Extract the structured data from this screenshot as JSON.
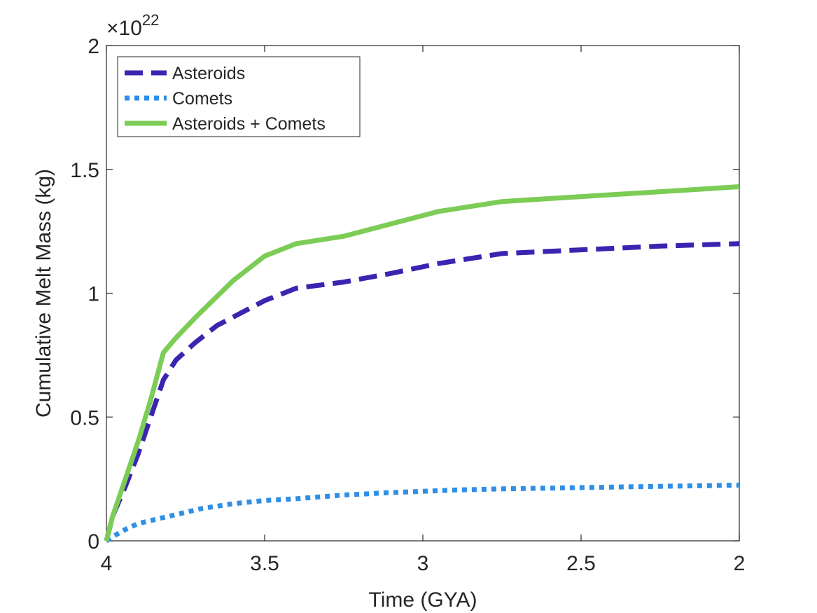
{
  "chart_data": {
    "type": "line",
    "title": "",
    "xlabel": "Time (GYA)",
    "ylabel": "Cumulative Melt Mass (kg)",
    "exponent_label": {
      "base": "×10",
      "power": "22"
    },
    "xlim": [
      4,
      2
    ],
    "ylim": [
      0,
      2
    ],
    "x_reversed": true,
    "x_ticks": [
      4,
      3.5,
      3,
      2.5,
      2
    ],
    "x_tick_labels": [
      "4",
      "3.5",
      "3",
      "2.5",
      "2"
    ],
    "y_ticks": [
      0,
      0.5,
      1,
      1.5,
      2
    ],
    "y_tick_labels": [
      "0",
      "0.5",
      "1",
      "1.5",
      "2"
    ],
    "grid": false,
    "legend_position": "top-left",
    "series": [
      {
        "name": "Asteroids",
        "color": "#3b24b0",
        "style": "dashed",
        "x": [
          4.0,
          3.98,
          3.94,
          3.9,
          3.86,
          3.82,
          3.78,
          3.72,
          3.65,
          3.5,
          3.4,
          3.25,
          3.1,
          2.95,
          2.75,
          2.5,
          2.25,
          2.0
        ],
        "y": [
          0.0,
          0.1,
          0.22,
          0.35,
          0.5,
          0.65,
          0.73,
          0.8,
          0.87,
          0.97,
          1.02,
          1.045,
          1.08,
          1.12,
          1.16,
          1.175,
          1.19,
          1.2
        ]
      },
      {
        "name": "Comets",
        "color": "#2f8fe6",
        "style": "dotted",
        "x": [
          4.0,
          3.95,
          3.9,
          3.8,
          3.7,
          3.6,
          3.5,
          3.4,
          3.25,
          3.1,
          2.9,
          2.75,
          2.5,
          2.25,
          2.0
        ],
        "y": [
          0.0,
          0.04,
          0.07,
          0.1,
          0.13,
          0.15,
          0.163,
          0.17,
          0.185,
          0.195,
          0.205,
          0.21,
          0.215,
          0.22,
          0.225
        ]
      },
      {
        "name": "Asteroids + Comets",
        "color": "#7ccc55",
        "style": "solid",
        "x": [
          4.0,
          3.98,
          3.94,
          3.9,
          3.86,
          3.82,
          3.78,
          3.72,
          3.6,
          3.5,
          3.4,
          3.25,
          3.1,
          2.95,
          2.75,
          2.5,
          2.25,
          2.0
        ],
        "y": [
          0.0,
          0.1,
          0.25,
          0.4,
          0.57,
          0.76,
          0.82,
          0.9,
          1.05,
          1.15,
          1.2,
          1.23,
          1.28,
          1.33,
          1.37,
          1.39,
          1.41,
          1.43
        ]
      }
    ]
  }
}
